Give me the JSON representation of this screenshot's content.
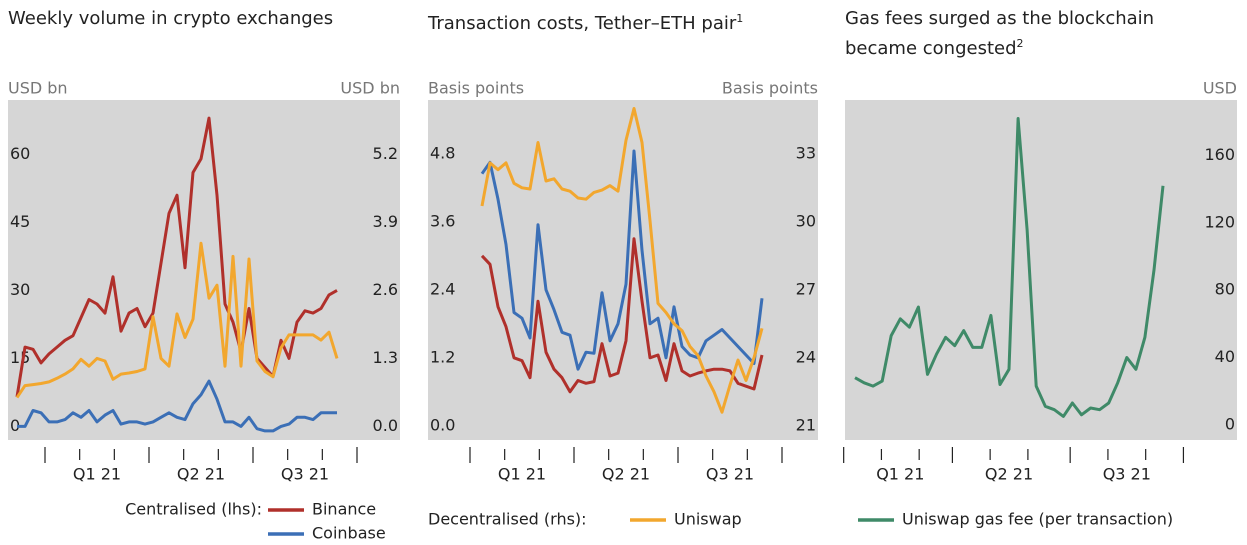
{
  "chart_data": [
    {
      "type": "line",
      "title": "Weekly volume in crypto exchanges",
      "y_label": "USD bn",
      "y2_label": "USD bn",
      "categories": [
        null,
        null,
        null,
        null,
        null,
        null,
        null,
        null,
        null,
        null,
        "Q1 21",
        null,
        null,
        null,
        null,
        null,
        null,
        null,
        null,
        null,
        null,
        null,
        null,
        "Q2 21",
        null,
        null,
        null,
        null,
        null,
        null,
        null,
        null,
        null,
        null,
        null,
        null,
        "Q3 21",
        null,
        null,
        null,
        null
      ],
      "ylim": [
        -3,
        72
      ],
      "yticks": [
        0,
        15,
        30,
        45,
        60
      ],
      "y2lim": [
        -0.26,
        6.24
      ],
      "y2ticks": [
        {
          "value": 0,
          "label": "0.0"
        },
        1.3,
        2.6,
        3.9,
        5.2
      ],
      "legend_title": "Centralised (lhs):",
      "series": [
        {
          "name": "Binance",
          "color": "#b0302b",
          "values": [
            6.5,
            17.5,
            17,
            14,
            16,
            17.5,
            19,
            20,
            24,
            28,
            27,
            25,
            33,
            21,
            25,
            26,
            22,
            25,
            36,
            47,
            51,
            35,
            56,
            59,
            68,
            51,
            27,
            23,
            16.5,
            26,
            15,
            13,
            11,
            19,
            15,
            23,
            25.5,
            25,
            26,
            29,
            30
          ]
        },
        {
          "name": "Coinbase",
          "color": "#3b6fb6",
          "values": [
            0,
            0,
            3.5,
            3,
            1,
            1,
            1.5,
            3,
            2,
            3.5,
            1,
            2.5,
            3.5,
            0.5,
            1,
            1,
            0.5,
            1,
            2,
            3,
            2,
            1.5,
            5,
            7,
            10,
            6,
            1,
            1,
            0,
            2,
            -0.5,
            -1,
            -1,
            0,
            0.5,
            2,
            2,
            1.5,
            3,
            3,
            3
          ]
        },
        {
          "color": "#f2a72e",
          "axis": "y2",
          "values": [
            0.55,
            0.78,
            0.8,
            0.82,
            0.85,
            0.92,
            1.0,
            1.1,
            1.28,
            1.15,
            1.3,
            1.25,
            0.9,
            1.0,
            1.02,
            1.05,
            1.1,
            2.1,
            1.3,
            1.15,
            2.15,
            1.7,
            2.05,
            3.5,
            2.45,
            2.7,
            1.15,
            3.25,
            1.15,
            3.2,
            1.25,
            1.05,
            0.95,
            1.5,
            1.75,
            1.75,
            1.75,
            1.75,
            1.65,
            1.8,
            1.3
          ]
        }
      ]
    },
    {
      "type": "line",
      "title": "Transaction costs, Tether–ETH pair",
      "title_note": "1",
      "y_label": "Basis points",
      "y2_label": "Basis points",
      "categories": [
        null,
        null,
        null,
        null,
        null,
        "Q1 21",
        null,
        null,
        null,
        null,
        null,
        null,
        null,
        null,
        null,
        null,
        null,
        null,
        "Q2 21",
        null,
        null,
        null,
        null,
        null,
        null,
        null,
        null,
        null,
        null,
        null,
        null,
        "Q3 21",
        null,
        null,
        null,
        null
      ],
      "ylim": [
        -0.25,
        5.75
      ],
      "yticks": [
        {
          "value": 0,
          "label": "0.0"
        },
        1.2,
        2.4,
        3.6,
        4.8
      ],
      "y2lim": [
        20.375,
        35.375
      ],
      "y2ticks": [
        21,
        24,
        27,
        30,
        33
      ],
      "legend_title": "Decentralised (rhs):",
      "series": [
        {
          "color": "#b0302b",
          "values": [
            3.0,
            2.85,
            2.1,
            1.75,
            1.2,
            1.15,
            0.85,
            2.2,
            1.3,
            1.0,
            0.85,
            0.6,
            0.8,
            0.75,
            0.78,
            1.45,
            0.88,
            0.93,
            1.5,
            3.3,
            2.2,
            1.2,
            1.25,
            0.8,
            1.45,
            0.97,
            0.88,
            0.93,
            0.97,
            1.0,
            1.0,
            0.97,
            0.75,
            0.7,
            0.65,
            1.25
          ]
        },
        {
          "color": "#3b6fb6",
          "values": [
            4.45,
            4.65,
            4.0,
            3.2,
            2.0,
            1.9,
            1.55,
            3.55,
            2.4,
            2.05,
            1.65,
            1.6,
            1.0,
            1.3,
            1.28,
            2.35,
            1.5,
            1.8,
            2.5,
            4.85,
            3.1,
            1.8,
            1.9,
            1.2,
            2.1,
            1.4,
            1.25,
            1.2,
            1.5,
            1.6,
            1.7,
            1.55,
            1.4,
            1.25,
            1.1,
            2.25
          ]
        },
        {
          "name": "Uniswap",
          "color": "#f2a72e",
          "axis": "y2",
          "values": [
            30.7,
            32.6,
            32.3,
            32.6,
            31.7,
            31.5,
            31.45,
            33.5,
            31.8,
            31.9,
            31.45,
            31.35,
            31.05,
            31.0,
            31.3,
            31.4,
            31.6,
            31.35,
            33.6,
            35.0,
            33.5,
            30.05,
            26.4,
            26.0,
            25.5,
            25.2,
            24.5,
            24.1,
            23.2,
            22.5,
            21.6,
            22.8,
            23.9,
            23.0,
            24.0,
            25.3
          ]
        }
      ]
    },
    {
      "type": "line",
      "title": "Gas fees surged as the blockchain became congested",
      "title_note": "2",
      "y2_label": "USD",
      "categories": [
        null,
        null,
        null,
        null,
        null,
        "Q1 21",
        null,
        null,
        null,
        null,
        null,
        null,
        null,
        null,
        null,
        null,
        null,
        "Q2 21",
        null,
        null,
        null,
        null,
        null,
        null,
        null,
        null,
        null,
        null,
        null,
        null,
        "Q3 21",
        null,
        null,
        null,
        null
      ],
      "y2lim": [
        -9,
        193
      ],
      "y2ticks": [
        0,
        40,
        80,
        120,
        160
      ],
      "series": [
        {
          "name": "Uniswap gas fee (per transaction)",
          "color": "#3f8a68",
          "axis": "y2",
          "values": [
            28,
            25,
            23,
            26,
            53,
            63,
            58,
            70,
            30,
            42,
            52,
            47,
            56,
            46,
            46,
            65,
            24,
            33,
            182,
            116,
            23,
            11,
            9,
            5,
            13,
            6,
            10,
            9,
            13,
            25,
            40,
            33,
            52,
            92,
            142
          ]
        }
      ]
    }
  ]
}
